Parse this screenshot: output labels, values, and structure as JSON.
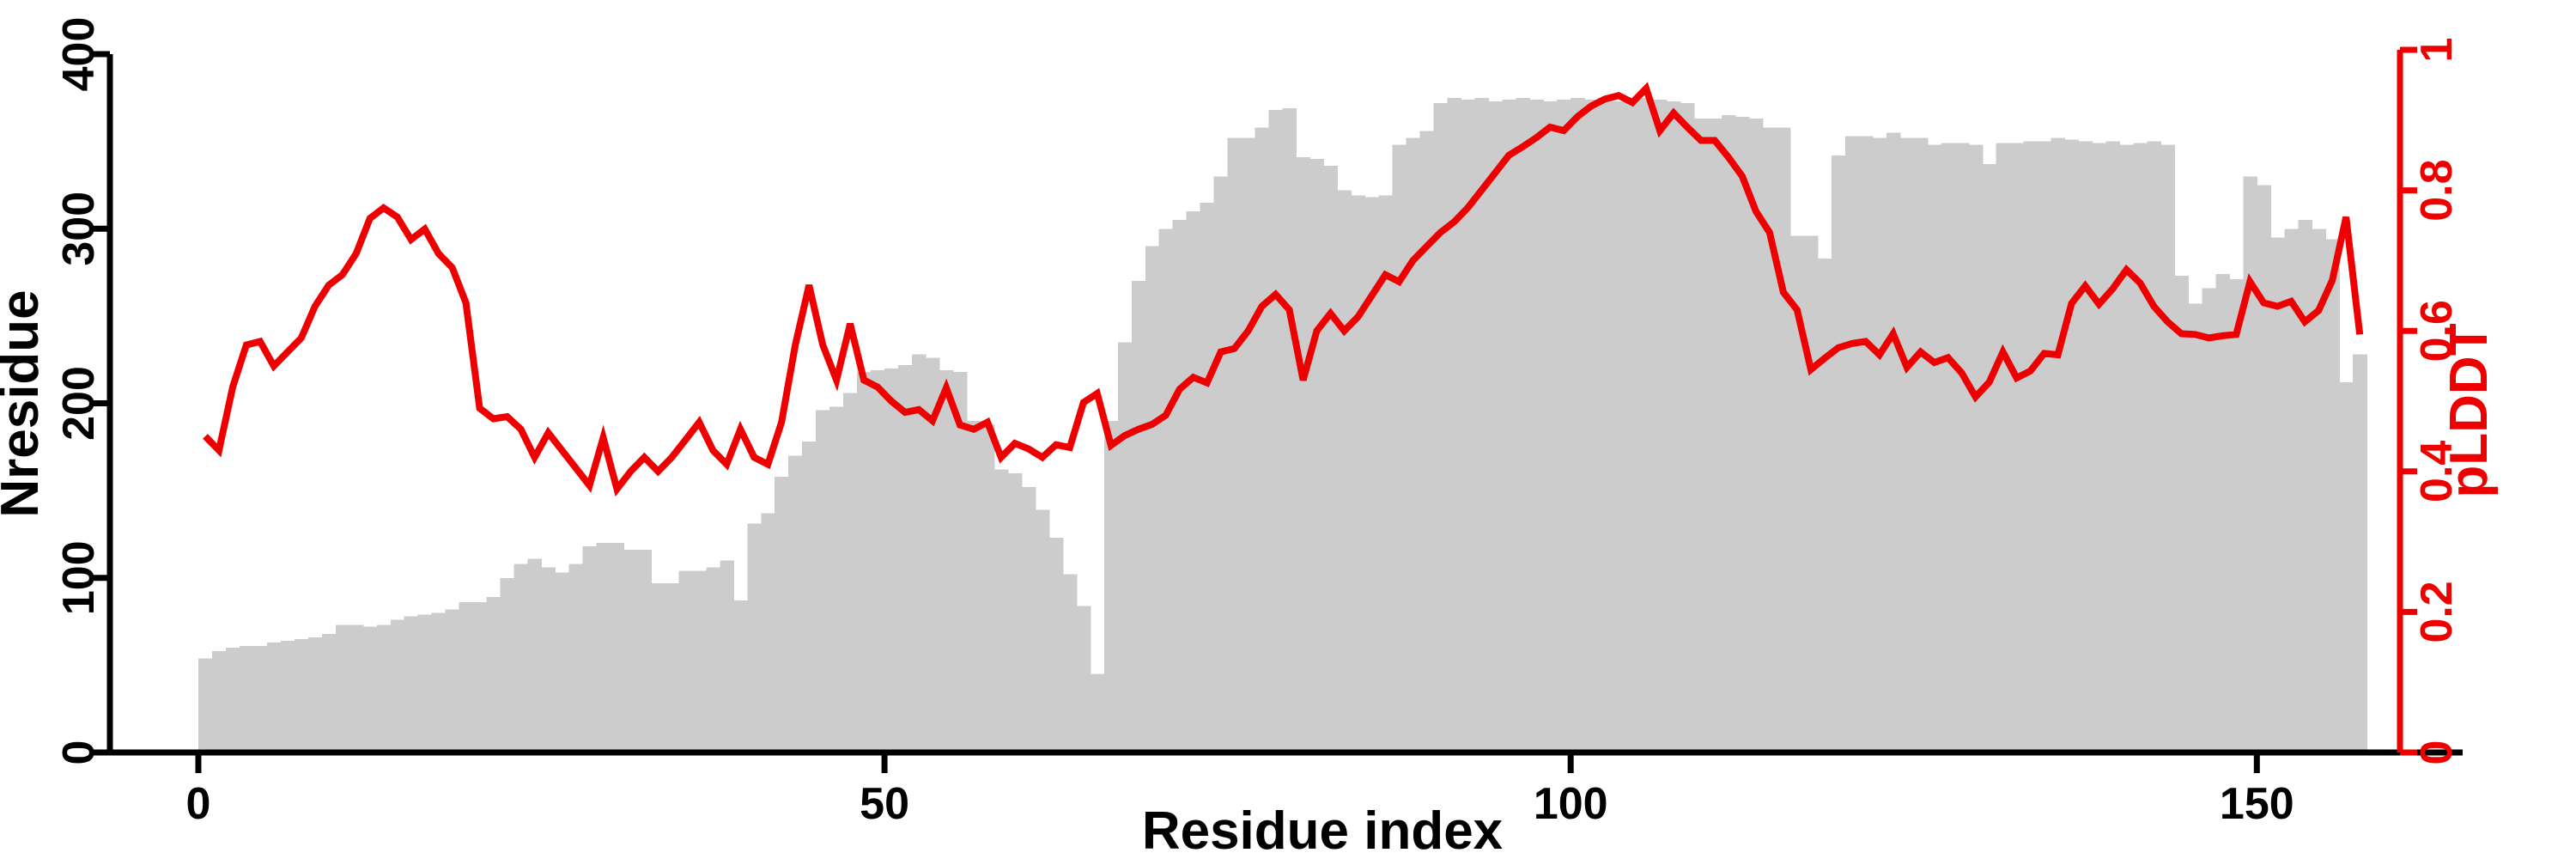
{
  "chart_data": {
    "type": "bar",
    "title": "",
    "xlabel": "Residue index",
    "ylabel_left": "Nresidue",
    "ylabel_right": "pLDDT",
    "x_axis": {
      "label": "Residue index",
      "tick_values": [
        0,
        50,
        100,
        150
      ],
      "tick_labels": [
        "0",
        "50",
        "100",
        "150"
      ],
      "range": [
        0,
        160
      ]
    },
    "left_axis": {
      "label": "Nresidue",
      "tick_values": [
        0,
        100,
        200,
        300,
        400
      ],
      "tick_labels": [
        "0",
        "100",
        "200",
        "300",
        "400"
      ],
      "range": [
        0,
        400
      ],
      "color": "#000000"
    },
    "right_axis": {
      "label": "pLDDT",
      "tick_values": [
        0,
        0.2,
        0.4,
        0.6,
        0.8,
        1
      ],
      "tick_labels": [
        "0",
        "0.2",
        "0.4",
        "0.6",
        "0.8",
        "1"
      ],
      "range": [
        0,
        1
      ],
      "color": "#ee0000"
    },
    "grid": false,
    "legend": "none",
    "residue_index_start": 1,
    "series": [
      {
        "name": "Nresidue",
        "type": "bar",
        "axis": "left",
        "color": "#cccccc",
        "values": [
          54,
          58,
          60,
          61,
          61,
          63,
          64,
          65,
          66,
          68,
          73,
          73,
          72,
          73,
          76,
          78,
          79,
          80,
          82,
          86,
          86,
          89,
          100,
          108,
          111,
          106,
          103,
          108,
          118,
          120,
          120,
          116,
          116,
          97,
          97,
          104,
          104,
          106,
          110,
          87,
          131,
          137,
          158,
          170,
          178,
          196,
          198,
          206,
          218,
          219,
          220,
          222,
          228,
          226,
          219,
          218,
          190,
          188,
          162,
          160,
          152,
          139,
          123,
          102,
          84,
          45,
          190,
          235,
          270,
          290,
          300,
          305,
          310,
          315,
          330,
          352,
          352,
          358,
          368,
          369,
          341,
          340,
          336,
          322,
          319,
          318,
          319,
          348,
          352,
          356,
          372,
          375,
          374,
          375,
          373,
          374,
          375,
          374,
          373,
          374,
          375,
          374,
          375,
          373,
          374,
          375,
          374,
          373,
          372,
          363,
          363,
          365,
          364,
          363,
          358,
          358,
          296,
          296,
          283,
          342,
          353,
          353,
          352,
          355,
          352,
          352,
          348,
          349,
          349,
          348,
          337,
          349,
          349,
          350,
          350,
          352,
          351,
          350,
          349,
          350,
          348,
          349,
          350,
          348,
          273,
          257,
          266,
          274,
          271,
          330,
          325,
          295,
          300,
          305,
          300,
          294,
          212,
          228
        ]
      },
      {
        "name": "pLDDT",
        "type": "line",
        "axis": "right",
        "color": "#ee0000",
        "values": [
          0.45,
          0.43,
          0.52,
          0.58,
          0.585,
          0.55,
          0.57,
          0.59,
          0.635,
          0.665,
          0.68,
          0.71,
          0.76,
          0.775,
          0.762,
          0.73,
          0.745,
          0.71,
          0.69,
          0.64,
          0.49,
          0.475,
          0.478,
          0.46,
          0.42,
          0.455,
          0.43,
          0.405,
          0.38,
          0.448,
          0.375,
          0.4,
          0.42,
          0.4,
          0.42,
          0.445,
          0.47,
          0.43,
          0.41,
          0.46,
          0.42,
          0.41,
          0.47,
          0.58,
          0.665,
          0.58,
          0.53,
          0.61,
          0.53,
          0.52,
          0.5,
          0.484,
          0.488,
          0.472,
          0.519,
          0.466,
          0.46,
          0.47,
          0.42,
          0.44,
          0.432,
          0.42,
          0.438,
          0.434,
          0.498,
          0.511,
          0.437,
          0.451,
          0.46,
          0.467,
          0.48,
          0.517,
          0.534,
          0.526,
          0.57,
          0.575,
          0.6,
          0.635,
          0.652,
          0.63,
          0.53,
          0.6,
          0.625,
          0.6,
          0.62,
          0.65,
          0.68,
          0.67,
          0.7,
          0.72,
          0.74,
          0.755,
          0.775,
          0.8,
          0.825,
          0.85,
          0.862,
          0.875,
          0.89,
          0.885,
          0.905,
          0.92,
          0.93,
          0.935,
          0.925,
          0.945,
          0.885,
          0.91,
          0.89,
          0.871,
          0.871,
          0.847,
          0.82,
          0.77,
          0.74,
          0.655,
          0.63,
          0.545,
          0.561,
          0.576,
          0.582,
          0.585,
          0.566,
          0.596,
          0.548,
          0.57,
          0.555,
          0.562,
          0.54,
          0.506,
          0.527,
          0.57,
          0.533,
          0.543,
          0.568,
          0.566,
          0.639,
          0.664,
          0.638,
          0.66,
          0.687,
          0.668,
          0.635,
          0.613,
          0.596,
          0.595,
          0.59,
          0.593,
          0.595,
          0.67,
          0.64,
          0.635,
          0.642,
          0.613,
          0.629,
          0.672,
          0.762,
          0.595
        ]
      }
    ]
  }
}
